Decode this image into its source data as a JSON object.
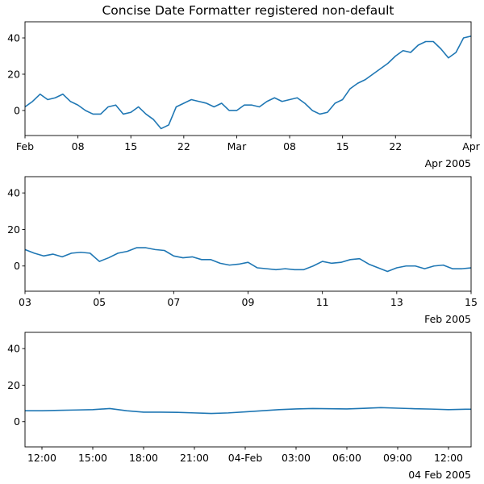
{
  "chart_data": [
    {
      "type": "line",
      "title": "Concise Date Formatter registered non-default",
      "xlim": [
        "2005-02-01T00:00",
        "2005-04-01T00:00"
      ],
      "ylim": [
        -13.8,
        48.9
      ],
      "yticks": [
        0,
        20,
        40
      ],
      "ytick_labels": [
        "0",
        "20",
        "40"
      ],
      "xticks": [
        "2005-02-01T00:00",
        "2005-02-08T00:00",
        "2005-02-15T00:00",
        "2005-02-22T00:00",
        "2005-03-01T00:00",
        "2005-03-08T00:00",
        "2005-03-15T00:00",
        "2005-03-22T00:00",
        "2005-04-01T00:00"
      ],
      "xtick_labels": [
        "Feb",
        "08",
        "15",
        "22",
        "Mar",
        "08",
        "15",
        "22",
        "Apr"
      ],
      "offset_label": "Apr 2005",
      "color": "#1f77b4",
      "x": [
        "2005-02-01",
        "2005-02-02",
        "2005-02-03",
        "2005-02-04",
        "2005-02-05",
        "2005-02-06",
        "2005-02-07",
        "2005-02-08",
        "2005-02-09",
        "2005-02-10",
        "2005-02-11",
        "2005-02-12",
        "2005-02-13",
        "2005-02-14",
        "2005-02-15",
        "2005-02-16",
        "2005-02-17",
        "2005-02-18",
        "2005-02-19",
        "2005-02-20",
        "2005-02-21",
        "2005-02-22",
        "2005-02-23",
        "2005-02-24",
        "2005-02-25",
        "2005-02-26",
        "2005-02-27",
        "2005-02-28",
        "2005-03-01",
        "2005-03-02",
        "2005-03-03",
        "2005-03-04",
        "2005-03-05",
        "2005-03-06",
        "2005-03-07",
        "2005-03-08",
        "2005-03-09",
        "2005-03-10",
        "2005-03-11",
        "2005-03-12",
        "2005-03-13",
        "2005-03-14",
        "2005-03-15",
        "2005-03-16",
        "2005-03-17",
        "2005-03-18",
        "2005-03-19",
        "2005-03-20",
        "2005-03-21",
        "2005-03-22",
        "2005-03-23",
        "2005-03-24",
        "2005-03-25",
        "2005-03-26",
        "2005-03-27",
        "2005-03-28",
        "2005-03-29",
        "2005-03-30",
        "2005-03-31",
        "2005-04-01"
      ],
      "y": [
        2,
        5,
        9,
        6,
        7,
        9,
        5,
        3,
        0,
        -2,
        -2,
        2,
        3,
        -2,
        -1,
        2,
        -2,
        -5,
        -10,
        -8,
        2,
        4,
        6,
        5,
        4,
        2,
        4,
        0,
        0,
        3,
        3,
        2,
        5,
        7,
        5,
        6,
        7,
        4,
        0,
        -2,
        -1,
        4,
        6,
        12,
        15,
        17,
        20,
        23,
        26,
        30,
        33,
        32,
        36,
        38,
        38,
        34,
        29,
        32,
        40,
        41
      ]
    },
    {
      "type": "line",
      "xlim": [
        "2005-02-03T00:00",
        "2005-02-15T00:00"
      ],
      "ylim": [
        -13.8,
        48.9
      ],
      "yticks": [
        0,
        20,
        40
      ],
      "ytick_labels": [
        "0",
        "20",
        "40"
      ],
      "xticks": [
        "2005-02-03T00:00",
        "2005-02-05T00:00",
        "2005-02-07T00:00",
        "2005-02-09T00:00",
        "2005-02-11T00:00",
        "2005-02-13T00:00",
        "2005-02-15T00:00"
      ],
      "xtick_labels": [
        "03",
        "05",
        "07",
        "09",
        "11",
        "13",
        "15"
      ],
      "offset_label": "Feb 2005",
      "color": "#1f77b4",
      "x": [
        "2005-02-03T00:00",
        "2005-02-03T06:00",
        "2005-02-03T12:00",
        "2005-02-03T18:00",
        "2005-02-04T00:00",
        "2005-02-04T06:00",
        "2005-02-04T12:00",
        "2005-02-04T18:00",
        "2005-02-05T00:00",
        "2005-02-05T06:00",
        "2005-02-05T12:00",
        "2005-02-05T18:00",
        "2005-02-06T00:00",
        "2005-02-06T06:00",
        "2005-02-06T12:00",
        "2005-02-06T18:00",
        "2005-02-07T00:00",
        "2005-02-07T06:00",
        "2005-02-07T12:00",
        "2005-02-07T18:00",
        "2005-02-08T00:00",
        "2005-02-08T06:00",
        "2005-02-08T12:00",
        "2005-02-08T18:00",
        "2005-02-09T00:00",
        "2005-02-09T06:00",
        "2005-02-09T12:00",
        "2005-02-09T18:00",
        "2005-02-10T00:00",
        "2005-02-10T06:00",
        "2005-02-10T12:00",
        "2005-02-10T18:00",
        "2005-02-11T00:00",
        "2005-02-11T06:00",
        "2005-02-11T12:00",
        "2005-02-11T18:00",
        "2005-02-12T00:00",
        "2005-02-12T06:00",
        "2005-02-12T12:00",
        "2005-02-12T18:00",
        "2005-02-13T00:00",
        "2005-02-13T06:00",
        "2005-02-13T12:00",
        "2005-02-13T18:00",
        "2005-02-14T00:00",
        "2005-02-14T06:00",
        "2005-02-14T12:00",
        "2005-02-14T18:00",
        "2005-02-15T00:00"
      ],
      "y": [
        9,
        7,
        5.5,
        6.5,
        5,
        7,
        7.5,
        7,
        2.5,
        4.5,
        7,
        8,
        10,
        10,
        9,
        8.5,
        5.5,
        4.5,
        5,
        3.5,
        3.5,
        1.5,
        0.5,
        1,
        2,
        -1,
        -1.5,
        -2,
        -1.5,
        -2,
        -2,
        0,
        2.5,
        1.5,
        2,
        3.5,
        4,
        1,
        -1,
        -3,
        -1,
        0,
        0,
        -1.5,
        0,
        0.5,
        -1.5,
        -1.5,
        -1
      ]
    },
    {
      "type": "line",
      "xlim": [
        "2005-02-03T11:00",
        "2005-02-04T13:20"
      ],
      "ylim": [
        -13.8,
        48.9
      ],
      "yticks": [
        0,
        20,
        40
      ],
      "ytick_labels": [
        "0",
        "20",
        "40"
      ],
      "xticks": [
        "2005-02-03T12:00",
        "2005-02-03T15:00",
        "2005-02-03T18:00",
        "2005-02-03T21:00",
        "2005-02-04T00:00",
        "2005-02-04T03:00",
        "2005-02-04T06:00",
        "2005-02-04T09:00",
        "2005-02-04T12:00"
      ],
      "xtick_labels": [
        "12:00",
        "15:00",
        "18:00",
        "21:00",
        "04-Feb",
        "03:00",
        "06:00",
        "09:00",
        "12:00"
      ],
      "offset_label": "04 Feb 2005",
      "color": "#1f77b4",
      "x": [
        "2005-02-03T11:00",
        "2005-02-03T12:00",
        "2005-02-03T13:00",
        "2005-02-03T14:00",
        "2005-02-03T15:00",
        "2005-02-03T16:00",
        "2005-02-03T17:00",
        "2005-02-03T18:00",
        "2005-02-03T19:00",
        "2005-02-03T20:00",
        "2005-02-03T21:00",
        "2005-02-03T22:00",
        "2005-02-03T23:00",
        "2005-02-04T00:00",
        "2005-02-04T01:00",
        "2005-02-04T02:00",
        "2005-02-04T03:00",
        "2005-02-04T04:00",
        "2005-02-04T05:00",
        "2005-02-04T06:00",
        "2005-02-04T07:00",
        "2005-02-04T08:00",
        "2005-02-04T09:00",
        "2005-02-04T10:00",
        "2005-02-04T11:00",
        "2005-02-04T12:00",
        "2005-02-04T13:00",
        "2005-02-04T14:00"
      ],
      "y": [
        6,
        6,
        6.2,
        6.4,
        6.6,
        7.2,
        6,
        5.2,
        5.2,
        5.1,
        4.8,
        4.5,
        4.8,
        5.4,
        6,
        6.6,
        7,
        7.2,
        7.1,
        7,
        7.3,
        7.7,
        7.4,
        7.1,
        6.9,
        6.6,
        6.8,
        6.9
      ]
    }
  ]
}
